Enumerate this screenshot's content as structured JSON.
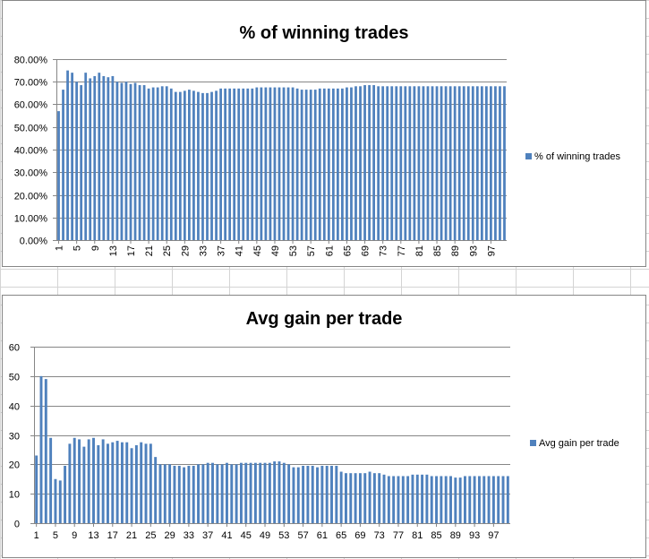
{
  "colors": {
    "bar": "#4f81bd",
    "gridline": "#868686",
    "axis": "#868686",
    "sheet_grid": "#d4d4d4"
  },
  "chart_data": [
    {
      "type": "bar",
      "title": "% of winning trades",
      "xlabel": "",
      "ylabel": "",
      "ylim": [
        0,
        0.8
      ],
      "y_ticks": [
        "0.00%",
        "10.00%",
        "20.00%",
        "30.00%",
        "40.00%",
        "50.00%",
        "60.00%",
        "70.00%",
        "80.00%"
      ],
      "x_tick_labels": [
        "1",
        "5",
        "9",
        "13",
        "17",
        "21",
        "25",
        "29",
        "33",
        "37",
        "41",
        "45",
        "49",
        "53",
        "57",
        "61",
        "65",
        "69",
        "73",
        "77",
        "81",
        "85",
        "89",
        "93",
        "97"
      ],
      "x_label_rotation": "vertical",
      "grid": true,
      "legend_position": "right",
      "categories": [
        1,
        2,
        3,
        4,
        5,
        6,
        7,
        8,
        9,
        10,
        11,
        12,
        13,
        14,
        15,
        16,
        17,
        18,
        19,
        20,
        21,
        22,
        23,
        24,
        25,
        26,
        27,
        28,
        29,
        30,
        31,
        32,
        33,
        34,
        35,
        36,
        37,
        38,
        39,
        40,
        41,
        42,
        43,
        44,
        45,
        46,
        47,
        48,
        49,
        50,
        51,
        52,
        53,
        54,
        55,
        56,
        57,
        58,
        59,
        60,
        61,
        62,
        63,
        64,
        65,
        66,
        67,
        68,
        69,
        70,
        71,
        72,
        73,
        74,
        75,
        76,
        77,
        78,
        79,
        80,
        81,
        82,
        83,
        84,
        85,
        86,
        87,
        88,
        89,
        90,
        91,
        92,
        93,
        94,
        95,
        96,
        97,
        98,
        99,
        100
      ],
      "series": [
        {
          "name": "% of winning trades",
          "values": [
            0.57,
            0.665,
            0.75,
            0.74,
            0.7,
            0.685,
            0.74,
            0.715,
            0.725,
            0.74,
            0.725,
            0.72,
            0.725,
            0.7,
            0.695,
            0.7,
            0.69,
            0.695,
            0.685,
            0.685,
            0.67,
            0.675,
            0.675,
            0.68,
            0.68,
            0.67,
            0.655,
            0.655,
            0.66,
            0.665,
            0.66,
            0.655,
            0.65,
            0.65,
            0.655,
            0.66,
            0.67,
            0.67,
            0.67,
            0.67,
            0.67,
            0.67,
            0.67,
            0.67,
            0.675,
            0.675,
            0.675,
            0.675,
            0.675,
            0.675,
            0.675,
            0.675,
            0.675,
            0.67,
            0.665,
            0.665,
            0.665,
            0.665,
            0.67,
            0.67,
            0.67,
            0.67,
            0.67,
            0.67,
            0.675,
            0.675,
            0.68,
            0.68,
            0.685,
            0.685,
            0.685,
            0.68,
            0.68,
            0.68,
            0.68,
            0.68,
            0.68,
            0.68,
            0.68,
            0.68,
            0.68,
            0.68,
            0.68,
            0.68,
            0.68,
            0.68,
            0.68,
            0.68,
            0.68,
            0.68,
            0.68,
            0.68,
            0.68,
            0.68,
            0.68,
            0.68,
            0.68,
            0.68,
            0.68,
            0.68
          ]
        }
      ]
    },
    {
      "type": "bar",
      "title": "Avg gain per trade",
      "xlabel": "",
      "ylabel": "",
      "ylim": [
        0,
        60
      ],
      "y_ticks": [
        "0",
        "10",
        "20",
        "30",
        "40",
        "50",
        "60"
      ],
      "x_tick_labels": [
        "1",
        "5",
        "9",
        "13",
        "17",
        "21",
        "25",
        "29",
        "33",
        "37",
        "41",
        "45",
        "49",
        "53",
        "57",
        "61",
        "65",
        "69",
        "73",
        "77",
        "81",
        "85",
        "89",
        "93",
        "97"
      ],
      "x_label_rotation": "horizontal",
      "grid": true,
      "legend_position": "right",
      "categories": [
        1,
        2,
        3,
        4,
        5,
        6,
        7,
        8,
        9,
        10,
        11,
        12,
        13,
        14,
        15,
        16,
        17,
        18,
        19,
        20,
        21,
        22,
        23,
        24,
        25,
        26,
        27,
        28,
        29,
        30,
        31,
        32,
        33,
        34,
        35,
        36,
        37,
        38,
        39,
        40,
        41,
        42,
        43,
        44,
        45,
        46,
        47,
        48,
        49,
        50,
        51,
        52,
        53,
        54,
        55,
        56,
        57,
        58,
        59,
        60,
        61,
        62,
        63,
        64,
        65,
        66,
        67,
        68,
        69,
        70,
        71,
        72,
        73,
        74,
        75,
        76,
        77,
        78,
        79,
        80,
        81,
        82,
        83,
        84,
        85,
        86,
        87,
        88,
        89,
        90,
        91,
        92,
        93,
        94,
        95,
        96,
        97,
        98,
        99,
        100
      ],
      "series": [
        {
          "name": "Avg gain per trade",
          "values": [
            23,
            50,
            49,
            29,
            15,
            14.5,
            19.5,
            27,
            29,
            28.5,
            26,
            28.5,
            29,
            26.5,
            28.5,
            27,
            27.5,
            28,
            27.5,
            27.5,
            25.5,
            26.5,
            27.5,
            27,
            27,
            22.5,
            20,
            20,
            20,
            19.5,
            19.5,
            19,
            19.5,
            19.5,
            20,
            20,
            20.5,
            20.5,
            20,
            20,
            20.5,
            20,
            20,
            20.5,
            20.5,
            20.5,
            20.5,
            20.5,
            20.5,
            20.5,
            21,
            21,
            20.5,
            20,
            19,
            19,
            19.5,
            19.5,
            19.5,
            19,
            19.5,
            19.5,
            19.5,
            19.5,
            17.5,
            17,
            17,
            17,
            17,
            17,
            17.5,
            17,
            17,
            16.5,
            16,
            16,
            16,
            16,
            16,
            16.5,
            16.5,
            16.5,
            16.5,
            16,
            16,
            16,
            16,
            16,
            15.5,
            15.5,
            16,
            16,
            16,
            16,
            16,
            16,
            16,
            16,
            16,
            16
          ]
        }
      ]
    }
  ]
}
